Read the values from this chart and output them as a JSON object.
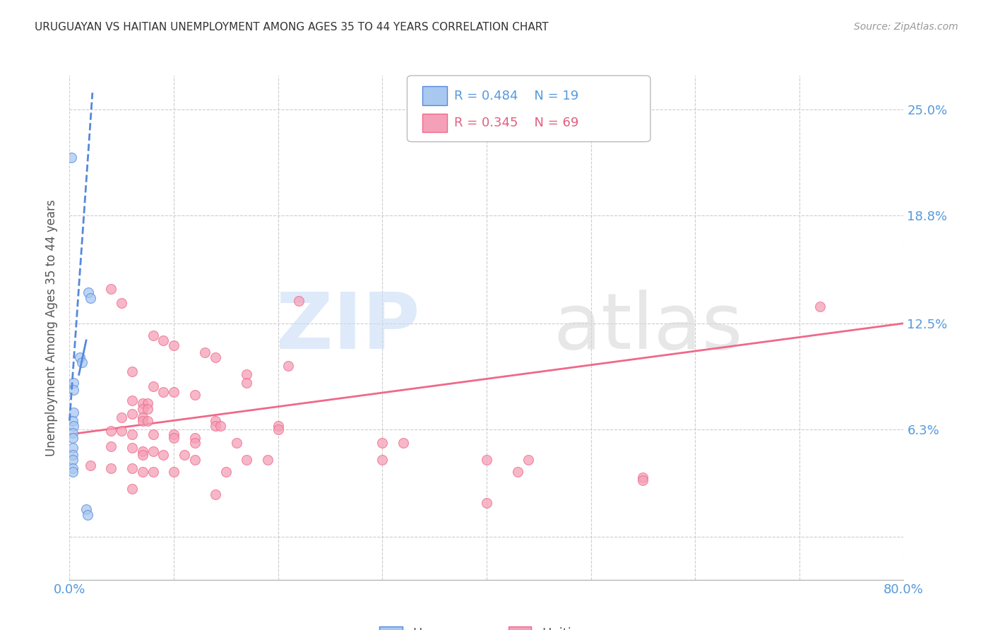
{
  "title": "URUGUAYAN VS HAITIAN UNEMPLOYMENT AMONG AGES 35 TO 44 YEARS CORRELATION CHART",
  "source": "Source: ZipAtlas.com",
  "ylabel": "Unemployment Among Ages 35 to 44 years",
  "xlim": [
    0.0,
    0.8
  ],
  "ylim": [
    -0.025,
    0.27
  ],
  "xticks": [
    0.0,
    0.1,
    0.2,
    0.3,
    0.4,
    0.5,
    0.6,
    0.7,
    0.8
  ],
  "xticklabels": [
    "0.0%",
    "",
    "",
    "",
    "",
    "",
    "",
    "",
    "80.0%"
  ],
  "yticks": [
    0.0,
    0.063,
    0.125,
    0.188,
    0.25
  ],
  "yticklabels": [
    "",
    "6.3%",
    "12.5%",
    "18.8%",
    "25.0%"
  ],
  "background_color": "#ffffff",
  "grid_color": "#cccccc",
  "uruguayan_color": "#a8c8f0",
  "haitian_color": "#f4a0b8",
  "trendline_uruguayan_color": "#5588dd",
  "trendline_haitian_color": "#f06888",
  "uruguayan_points": [
    [
      0.002,
      0.222
    ],
    [
      0.018,
      0.143
    ],
    [
      0.02,
      0.14
    ],
    [
      0.01,
      0.105
    ],
    [
      0.012,
      0.102
    ],
    [
      0.004,
      0.09
    ],
    [
      0.004,
      0.086
    ],
    [
      0.004,
      0.073
    ],
    [
      0.003,
      0.068
    ],
    [
      0.004,
      0.065
    ],
    [
      0.003,
      0.061
    ],
    [
      0.003,
      0.058
    ],
    [
      0.003,
      0.052
    ],
    [
      0.003,
      0.048
    ],
    [
      0.003,
      0.045
    ],
    [
      0.003,
      0.04
    ],
    [
      0.003,
      0.038
    ],
    [
      0.016,
      0.016
    ],
    [
      0.017,
      0.013
    ]
  ],
  "haitian_points": [
    [
      0.04,
      0.145
    ],
    [
      0.05,
      0.137
    ],
    [
      0.22,
      0.138
    ],
    [
      0.08,
      0.118
    ],
    [
      0.09,
      0.115
    ],
    [
      0.1,
      0.112
    ],
    [
      0.13,
      0.108
    ],
    [
      0.14,
      0.105
    ],
    [
      0.21,
      0.1
    ],
    [
      0.06,
      0.097
    ],
    [
      0.17,
      0.095
    ],
    [
      0.17,
      0.09
    ],
    [
      0.08,
      0.088
    ],
    [
      0.09,
      0.085
    ],
    [
      0.1,
      0.085
    ],
    [
      0.12,
      0.083
    ],
    [
      0.06,
      0.08
    ],
    [
      0.07,
      0.078
    ],
    [
      0.075,
      0.078
    ],
    [
      0.07,
      0.075
    ],
    [
      0.075,
      0.075
    ],
    [
      0.06,
      0.072
    ],
    [
      0.05,
      0.07
    ],
    [
      0.07,
      0.07
    ],
    [
      0.07,
      0.068
    ],
    [
      0.075,
      0.068
    ],
    [
      0.14,
      0.068
    ],
    [
      0.14,
      0.065
    ],
    [
      0.145,
      0.065
    ],
    [
      0.2,
      0.065
    ],
    [
      0.2,
      0.063
    ],
    [
      0.04,
      0.062
    ],
    [
      0.05,
      0.062
    ],
    [
      0.06,
      0.06
    ],
    [
      0.08,
      0.06
    ],
    [
      0.1,
      0.06
    ],
    [
      0.1,
      0.058
    ],
    [
      0.12,
      0.058
    ],
    [
      0.12,
      0.055
    ],
    [
      0.16,
      0.055
    ],
    [
      0.3,
      0.055
    ],
    [
      0.32,
      0.055
    ],
    [
      0.04,
      0.053
    ],
    [
      0.06,
      0.052
    ],
    [
      0.07,
      0.05
    ],
    [
      0.08,
      0.05
    ],
    [
      0.07,
      0.048
    ],
    [
      0.09,
      0.048
    ],
    [
      0.11,
      0.048
    ],
    [
      0.12,
      0.045
    ],
    [
      0.17,
      0.045
    ],
    [
      0.19,
      0.045
    ],
    [
      0.3,
      0.045
    ],
    [
      0.4,
      0.045
    ],
    [
      0.44,
      0.045
    ],
    [
      0.02,
      0.042
    ],
    [
      0.04,
      0.04
    ],
    [
      0.06,
      0.04
    ],
    [
      0.07,
      0.038
    ],
    [
      0.08,
      0.038
    ],
    [
      0.1,
      0.038
    ],
    [
      0.15,
      0.038
    ],
    [
      0.43,
      0.038
    ],
    [
      0.55,
      0.035
    ],
    [
      0.55,
      0.033
    ],
    [
      0.06,
      0.028
    ],
    [
      0.14,
      0.025
    ],
    [
      0.4,
      0.02
    ],
    [
      0.72,
      0.135
    ]
  ],
  "uruguayan_trendline_x": [
    0.0,
    0.022
  ],
  "uruguayan_trendline_y": [
    0.068,
    0.26
  ],
  "haitian_trendline_x": [
    0.0,
    0.8
  ],
  "haitian_trendline_y": [
    0.06,
    0.125
  ]
}
